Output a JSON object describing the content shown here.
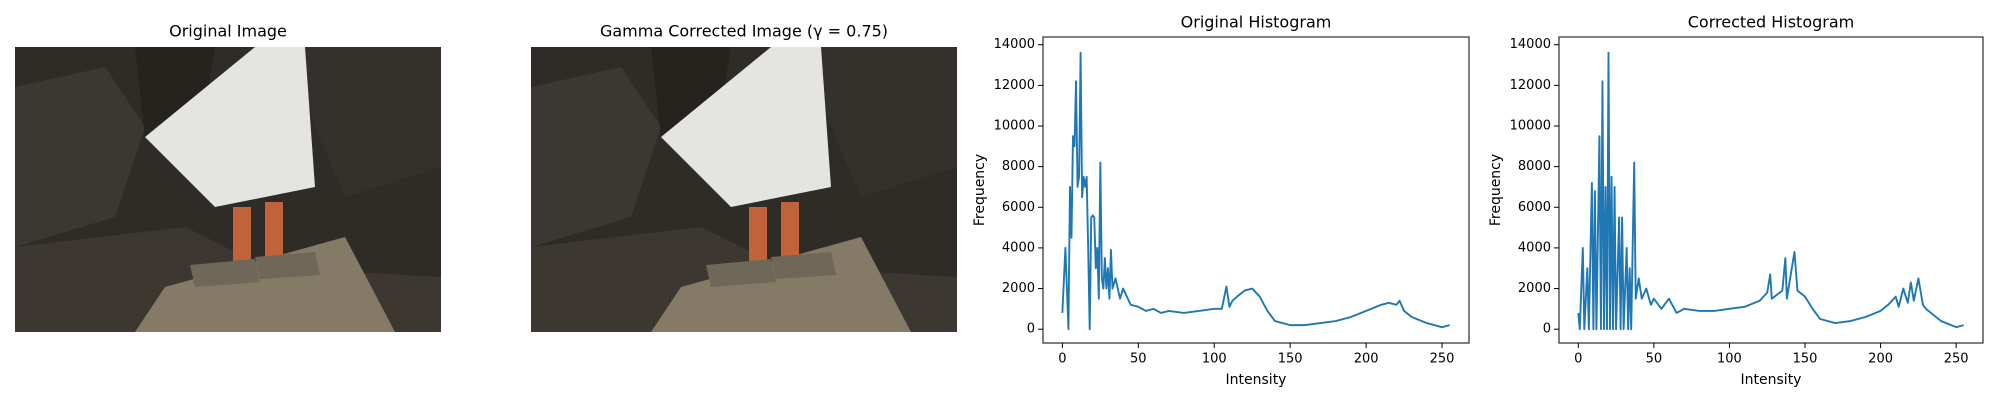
{
  "images": [
    {
      "title": "Original Image"
    },
    {
      "title": "Gamma Corrected Image (γ = 0.75)"
    }
  ],
  "chart_data": [
    {
      "type": "line",
      "title": "Original Histogram",
      "x_label": "Intensity",
      "y_label": "Frequency",
      "color": "#1f77b4",
      "xlim": [
        -12.75,
        267.75
      ],
      "xticks": [
        0,
        50,
        100,
        150,
        200,
        250
      ],
      "ylim": [
        -680,
        14380
      ],
      "yticks": [
        0,
        2000,
        4000,
        6000,
        8000,
        10000,
        12000,
        14000
      ],
      "x": [
        0,
        2,
        4,
        5,
        6,
        7,
        8,
        9,
        10,
        11,
        12,
        13,
        14,
        15,
        16,
        17,
        18,
        19,
        20,
        21,
        22,
        23,
        24,
        25,
        26,
        27,
        28,
        29,
        30,
        31,
        32,
        33,
        35,
        38,
        40,
        45,
        50,
        55,
        60,
        65,
        70,
        80,
        90,
        100,
        105,
        108,
        110,
        112,
        115,
        120,
        125,
        130,
        135,
        140,
        150,
        160,
        170,
        180,
        190,
        200,
        210,
        215,
        220,
        222,
        225,
        230,
        240,
        250,
        255
      ],
      "values": [
        800,
        4000,
        0,
        7000,
        4500,
        9500,
        9000,
        12200,
        7000,
        7500,
        13600,
        6500,
        7500,
        7000,
        7500,
        4000,
        0,
        5500,
        5600,
        5500,
        3000,
        4000,
        1500,
        8200,
        2500,
        2000,
        3500,
        2000,
        3000,
        1500,
        3900,
        2000,
        2500,
        1500,
        2000,
        1200,
        1100,
        900,
        1000,
        800,
        900,
        800,
        900,
        1000,
        1000,
        2100,
        1100,
        1400,
        1600,
        1900,
        2000,
        1600,
        900,
        400,
        200,
        200,
        300,
        400,
        600,
        900,
        1200,
        1300,
        1200,
        1400,
        900,
        600,
        300,
        100,
        200
      ]
    },
    {
      "type": "line",
      "title": "Corrected Histogram",
      "x_label": "Intensity",
      "y_label": "Frequency",
      "color": "#1f77b4",
      "xlim": [
        -12.75,
        267.75
      ],
      "xticks": [
        0,
        50,
        100,
        150,
        200,
        250
      ],
      "ylim": [
        -680,
        14380
      ],
      "yticks": [
        0,
        2000,
        4000,
        6000,
        8000,
        10000,
        12000,
        14000
      ],
      "x": [
        0,
        1,
        3,
        4,
        6,
        7,
        9,
        10,
        11,
        12,
        14,
        15,
        16,
        17,
        18,
        19,
        20,
        21,
        22,
        23,
        24,
        25,
        27,
        28,
        29,
        30,
        32,
        33,
        34,
        35,
        37,
        38,
        40,
        42,
        45,
        48,
        50,
        55,
        60,
        65,
        70,
        80,
        90,
        100,
        110,
        120,
        125,
        127,
        128,
        135,
        137,
        138,
        143,
        145,
        150,
        155,
        160,
        170,
        180,
        190,
        200,
        205,
        210,
        212,
        215,
        218,
        220,
        222,
        225,
        228,
        230,
        240,
        250,
        255
      ],
      "values": [
        800,
        0,
        4000,
        0,
        3000,
        0,
        7200,
        0,
        6800,
        0,
        9500,
        0,
        12200,
        0,
        7000,
        0,
        13600,
        0,
        7500,
        0,
        7000,
        0,
        5500,
        0,
        5500,
        0,
        4000,
        0,
        3000,
        0,
        8200,
        1500,
        2500,
        1500,
        2000,
        1200,
        1500,
        1000,
        1500,
        800,
        1000,
        900,
        900,
        1000,
        1100,
        1400,
        1800,
        2700,
        1500,
        1900,
        3500,
        1500,
        3800,
        1900,
        1600,
        1000,
        500,
        300,
        400,
        600,
        900,
        1200,
        1600,
        1100,
        2000,
        1300,
        2300,
        1400,
        2500,
        1200,
        1000,
        400,
        100,
        200
      ]
    }
  ]
}
